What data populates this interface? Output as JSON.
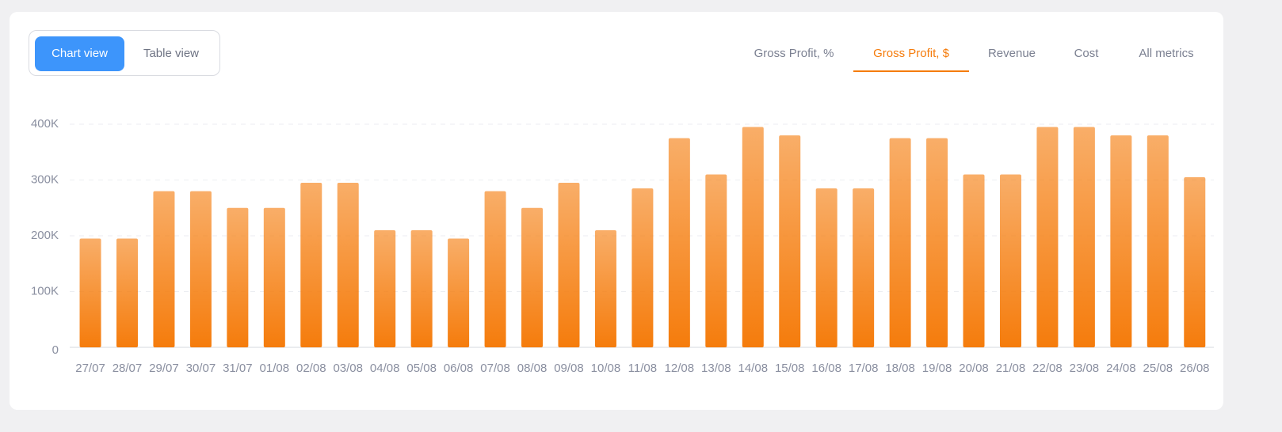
{
  "view_toggle": [
    "Chart view",
    "Table view"
  ],
  "tabs": [
    "Gross Profit, %",
    "Gross Profit, $",
    "Revenue",
    "Cost",
    "All metrics"
  ],
  "chart_data": {
    "type": "bar",
    "categories": [
      "27/07",
      "28/07",
      "29/07",
      "30/07",
      "31/07",
      "01/08",
      "02/08",
      "03/08",
      "04/08",
      "05/08",
      "06/08",
      "07/08",
      "08/08",
      "09/08",
      "10/08",
      "11/08",
      "12/08",
      "13/08",
      "14/08",
      "15/08",
      "16/08",
      "17/08",
      "18/08",
      "19/08",
      "20/08",
      "21/08",
      "22/08",
      "23/08",
      "24/08",
      "25/08",
      "26/08"
    ],
    "values": [
      195000,
      195000,
      280000,
      280000,
      250000,
      250000,
      295000,
      295000,
      210000,
      210000,
      195000,
      280000,
      250000,
      295000,
      210000,
      285000,
      375000,
      310000,
      395000,
      380000,
      285000,
      285000,
      375000,
      375000,
      310000,
      310000,
      395000,
      395000,
      380000,
      380000,
      305000
    ],
    "color": "#f57c0c",
    "ylim": [
      0,
      400000
    ],
    "yticks": [
      0,
      {
        "value": 100000,
        "label": "100K"
      },
      {
        "value": 200000,
        "label": "200K"
      },
      {
        "value": 300000,
        "label": "300K"
      },
      {
        "value": 400000,
        "label": "400K"
      }
    ],
    "grid": true
  }
}
